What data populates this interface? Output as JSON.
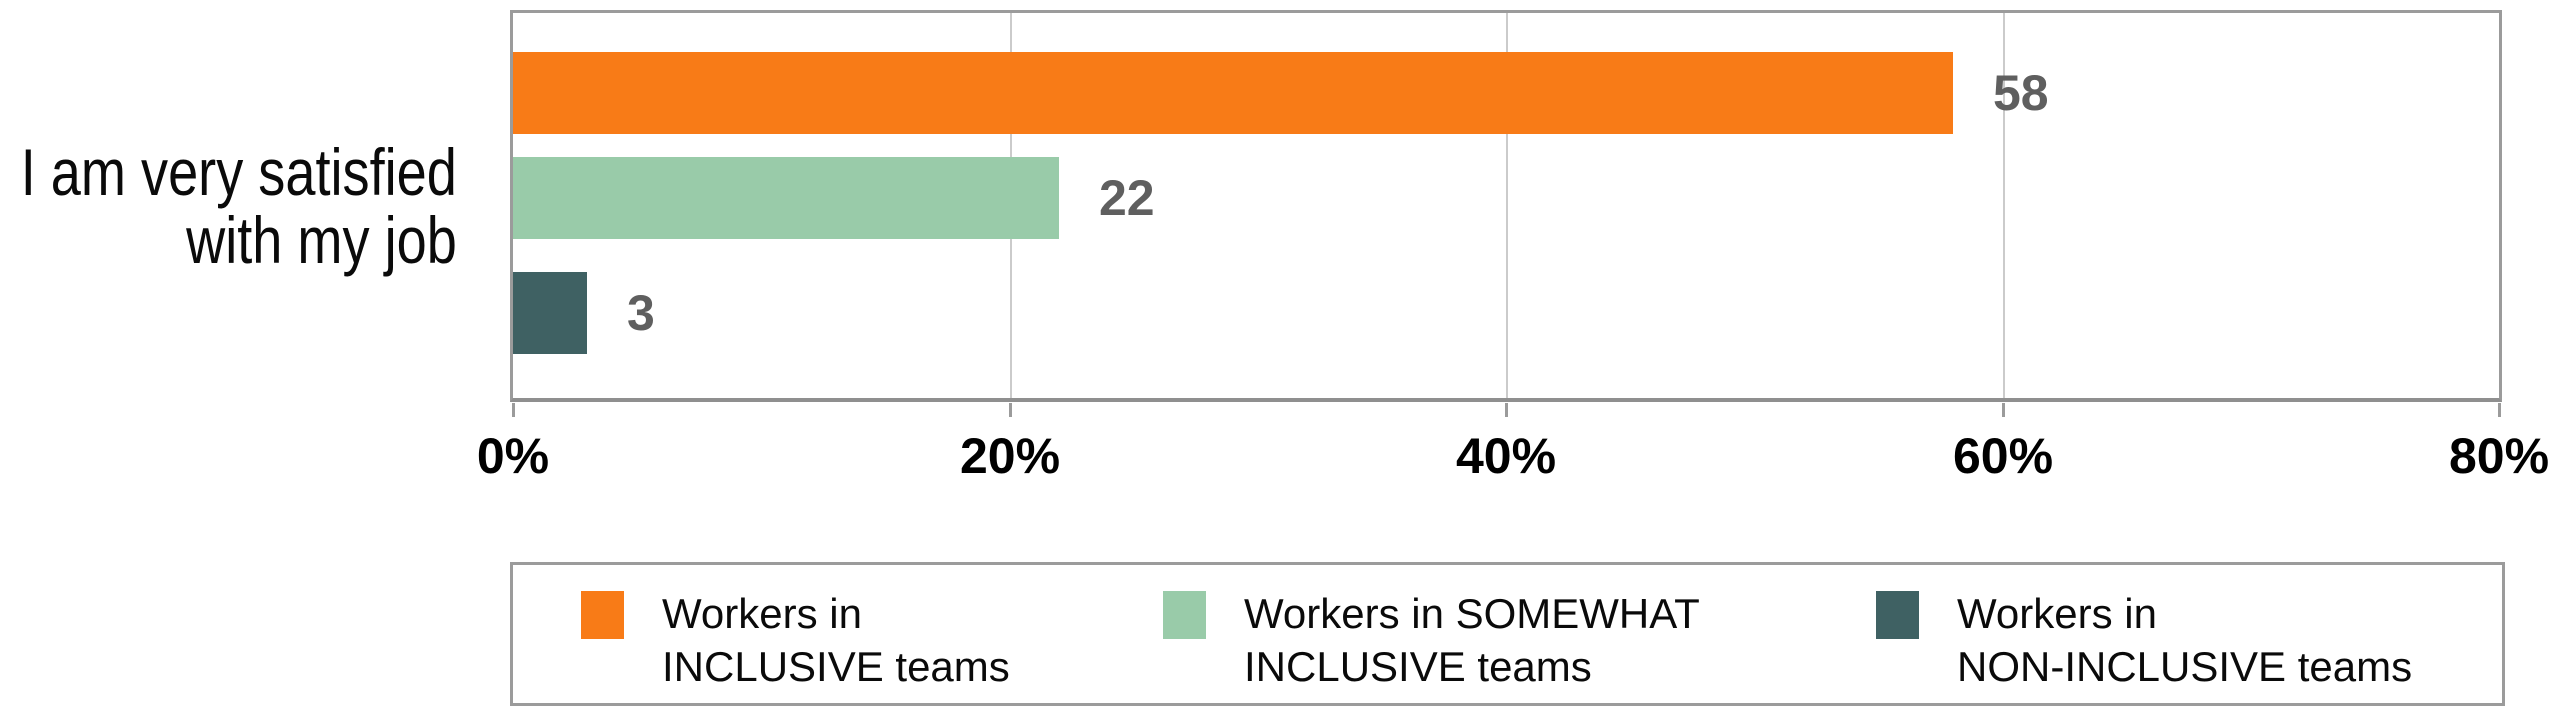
{
  "chart_data": {
    "type": "bar",
    "orientation": "horizontal",
    "category_label": "I am very satisfied with my job",
    "category_label_lines": [
      "I am very satisfied",
      "with my job"
    ],
    "x_axis": {
      "min": 0,
      "max": 80,
      "tick_step": 20,
      "tick_labels": [
        "0%",
        "20%",
        "40%",
        "60%",
        "80%"
      ],
      "unit": "%",
      "grid": true
    },
    "series": [
      {
        "name": "Workers in INCLUSIVE teams",
        "legend_lines": [
          "Workers in",
          "INCLUSIVE teams"
        ],
        "value": 58,
        "color": "#F87B17"
      },
      {
        "name": "Workers in SOMEWHAT INCLUSIVE teams",
        "legend_lines": [
          "Workers in SOMEWHAT",
          "INCLUSIVE teams"
        ],
        "value": 22,
        "color": "#99CBA9"
      },
      {
        "name": "Workers in NON-INCLUSIVE teams",
        "legend_lines": [
          "Workers in",
          "NON-INCLUSIVE teams"
        ],
        "value": 3,
        "color": "#3F6163"
      }
    ],
    "legend_position": "bottom"
  },
  "styles": {
    "value_label_color": "#5F5F5F",
    "axis_color": "#9B9B9B",
    "gridline_color": "#CBCBCB",
    "text_color": "#000000",
    "background": "#FFFFFF"
  }
}
